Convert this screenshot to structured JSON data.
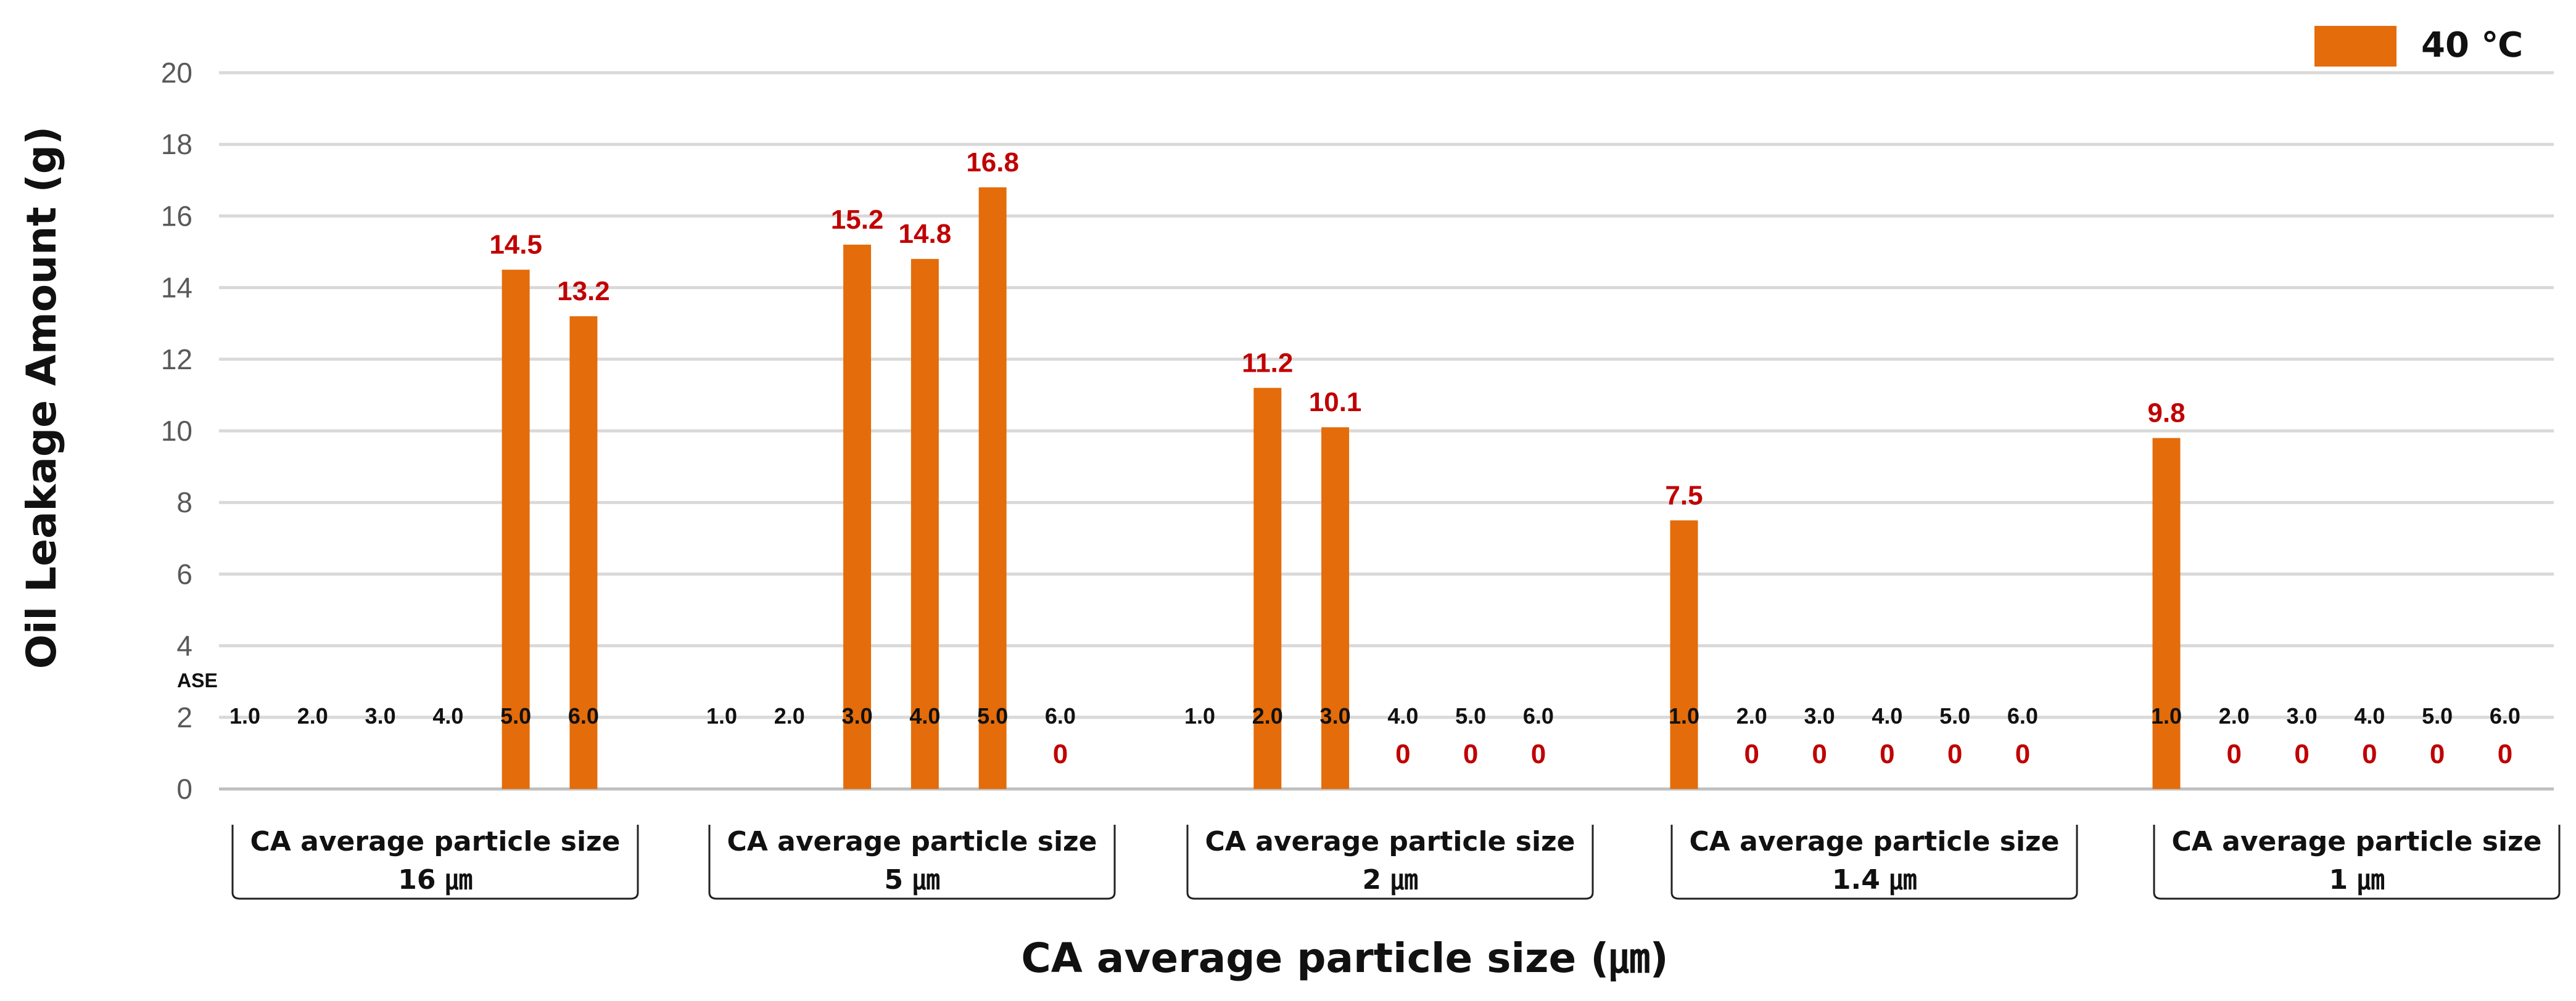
{
  "chart_data": {
    "type": "bar",
    "title": "",
    "xlabel": "CA average particle size (㎛)",
    "ylabel": "Oil Leakage Amount (g)",
    "ylim": [
      0,
      20
    ],
    "yticks": [
      0,
      2,
      4,
      6,
      8,
      10,
      12,
      14,
      16,
      18,
      20
    ],
    "grid": true,
    "legend_position": "top-right",
    "series_name": "40 ℃",
    "series_color": "#e46c0a",
    "label_color": "#c00000",
    "subcategory_caption": "ASE",
    "group_caption": "CA average particle size",
    "groups": [
      {
        "name": "16 ㎛",
        "caption": "CA average particle size",
        "subcategories": [
          "1.0",
          "2.0",
          "3.0",
          "4.0",
          "5.0",
          "6.0"
        ],
        "values": [
          null,
          null,
          null,
          null,
          14.5,
          13.2
        ],
        "labels": [
          "",
          "",
          "",
          "",
          "14.5",
          "13.2"
        ]
      },
      {
        "name": "5 ㎛",
        "caption": "CA average particle size",
        "subcategories": [
          "1.0",
          "2.0",
          "3.0",
          "4.0",
          "5.0",
          "6.0"
        ],
        "values": [
          null,
          null,
          15.2,
          14.8,
          16.8,
          0
        ],
        "labels": [
          "",
          "",
          "15.2",
          "14.8",
          "16.8",
          "0"
        ]
      },
      {
        "name": "2 ㎛",
        "caption": "CA average particle size",
        "subcategories": [
          "1.0",
          "2.0",
          "3.0",
          "4.0",
          "5.0",
          "6.0"
        ],
        "values": [
          null,
          11.2,
          10.1,
          0,
          0,
          0
        ],
        "labels": [
          "",
          "11.2",
          "10.1",
          "0",
          "0",
          "0"
        ]
      },
      {
        "name": "1.4 ㎛",
        "caption": "CA average particle size",
        "subcategories": [
          "1.0",
          "2.0",
          "3.0",
          "4.0",
          "5.0",
          "6.0"
        ],
        "values": [
          7.5,
          0,
          0,
          0,
          0,
          0
        ],
        "labels": [
          "7.5",
          "0",
          "0",
          "0",
          "0",
          "0"
        ]
      },
      {
        "name": "1 ㎛",
        "caption": "CA average particle size",
        "subcategories": [
          "1.0",
          "2.0",
          "3.0",
          "4.0",
          "5.0",
          "6.0"
        ],
        "values": [
          9.8,
          0,
          0,
          0,
          0,
          0
        ],
        "labels": [
          "9.8",
          "0",
          "0",
          "0",
          "0",
          "0"
        ]
      }
    ]
  }
}
